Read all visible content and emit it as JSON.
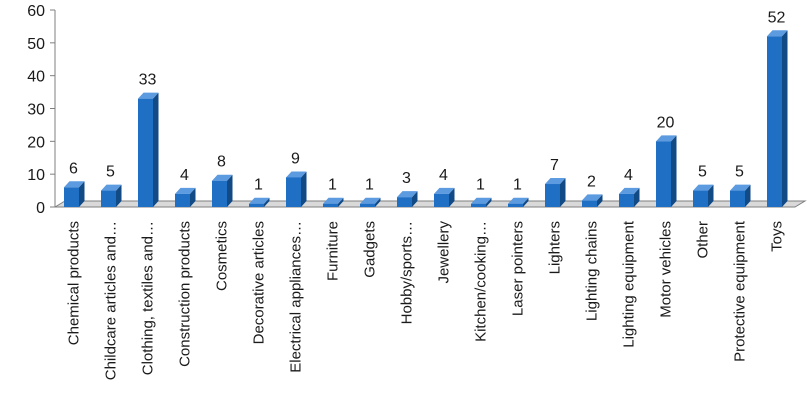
{
  "chart_data": {
    "type": "bar",
    "title": "",
    "xlabel": "",
    "ylabel": "",
    "categories": [
      "Chemical products",
      "Childcare articles and…",
      "Clothing, textiles and…",
      "Construction products",
      "Cosmetics",
      "Decorative articles",
      "Electrical appliances…",
      "Furniture",
      "Gadgets",
      "Hobby/sports…",
      "Jewellery",
      "Kitchen/cooking…",
      "Laser pointers",
      "Lighters",
      "Lighting chains",
      "Lighting equipment",
      "Motor vehicles",
      "Other",
      "Protective equipment",
      "Toys"
    ],
    "values": [
      6,
      5,
      33,
      4,
      8,
      1,
      9,
      1,
      1,
      3,
      4,
      1,
      1,
      7,
      2,
      4,
      20,
      5,
      5,
      52
    ],
    "data_labels": [
      "6",
      "5",
      "33",
      "4",
      "8",
      "1",
      "9",
      "1",
      "1",
      "3",
      "4",
      "1",
      "1",
      "7",
      "2",
      "4",
      "20",
      "5",
      "5",
      "52"
    ],
    "ylim": [
      0,
      60
    ],
    "yticks": [
      "0",
      "10",
      "20",
      "30",
      "40",
      "50",
      "60"
    ],
    "grid": false,
    "legend": "none",
    "bar_style": "3d",
    "colors": {
      "bar_front": "#1f6fc5",
      "bar_side": "#124a86",
      "bar_top": "#5d9be0",
      "axis": "#7f7f7f",
      "floor": "#d9d9d9"
    }
  }
}
